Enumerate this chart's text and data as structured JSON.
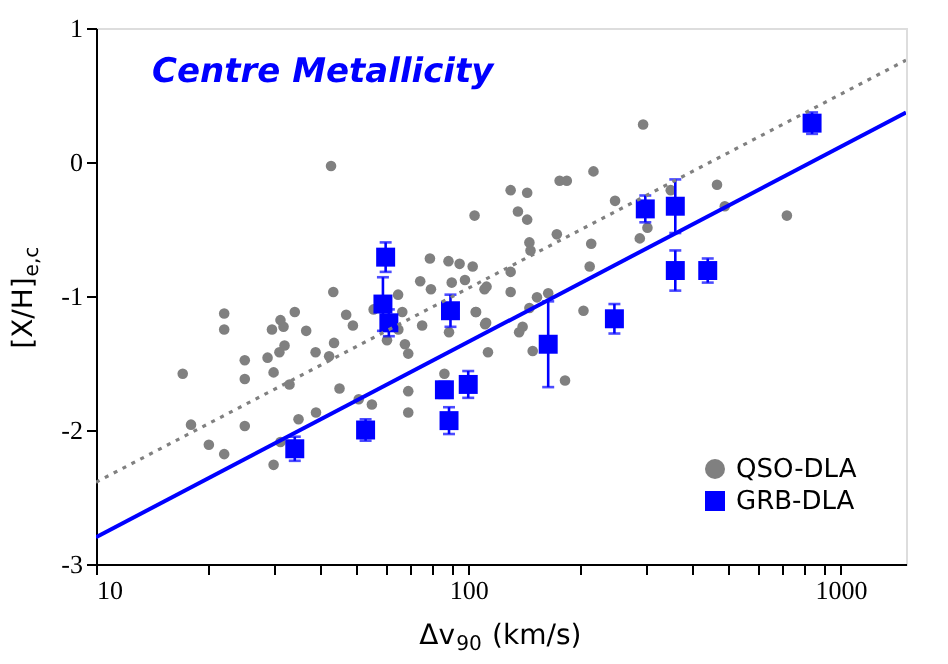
{
  "chart_data": {
    "type": "scatter",
    "title": "Centre Metallicity",
    "xlabel": "Δv$_{90}$ (km/s)",
    "ylabel": "[X/H]$_{e,c}$",
    "log": "x",
    "xlim": [
      10,
      1500
    ],
    "ylim": [
      -3,
      1
    ],
    "xticks": [
      10,
      {
        "value": 20,
        "label": null
      },
      {
        "value": 30,
        "label": null
      },
      {
        "value": 40,
        "label": null
      },
      {
        "value": 50,
        "label": null
      },
      {
        "value": 60,
        "label": null
      },
      {
        "value": 70,
        "label": null
      },
      {
        "value": 80,
        "label": null
      },
      {
        "value": 90,
        "label": null
      },
      100,
      {
        "value": 200,
        "label": null
      },
      {
        "value": 300,
        "label": null
      },
      {
        "value": 400,
        "label": null
      },
      {
        "value": 500,
        "label": null
      },
      {
        "value": 600,
        "label": null
      },
      {
        "value": 700,
        "label": null
      },
      {
        "value": 800,
        "label": null
      },
      {
        "value": 900,
        "label": null
      },
      1000
    ],
    "yticks": [
      -3,
      -2,
      -1,
      0,
      1
    ],
    "grid": false,
    "legend": "bottom right",
    "series": [
      {
        "name": "QSO-DLA",
        "type": "scatter",
        "marker": "circle",
        "color": "#808080",
        "x": [
          42.8,
          104,
          22.1,
          22.1,
          43.4,
          78.9,
          88.5,
          94.8,
          102.8,
          74.3,
          79.4,
          90.3,
          98,
          110.6,
          64.8,
          47,
          49,
          55.7,
          34.2,
          31.3,
          29.7,
          31.9,
          105,
          17.1,
          18,
          20.1,
          22.1,
          25.1,
          25.1,
          25.1,
          28.9,
          30,
          30,
          31.1,
          32.1,
          31.3,
          33.1,
          35,
          36.7,
          38.9,
          39,
          42.3,
          43.6,
          45.1,
          50.8,
          55.1,
          60.5,
          64.9,
          67.6,
          69,
          69,
          69,
          66.5,
          75.2,
          86.3,
          88.8,
          104.7,
          111.7,
          113,
          295,
          217,
          176,
          184,
          130,
          144,
          136,
          144,
          248,
          466,
          489,
          718,
          350,
          303,
          289,
          173,
          146,
          147,
          214,
          212,
          130,
          112,
          130,
          153,
          164,
          146,
          111,
          137,
          140,
          204,
          149,
          182
        ],
        "values": [
          -0.03,
          -0.4,
          -1.13,
          -1.25,
          -0.97,
          -0.72,
          -0.74,
          -0.76,
          -0.78,
          -0.89,
          -0.95,
          -0.9,
          -0.88,
          -0.95,
          -0.99,
          -1.14,
          -1.22,
          -1.1,
          -1.12,
          -1.18,
          -1.25,
          -1.23,
          -1.12,
          -1.58,
          -1.96,
          -2.11,
          -2.18,
          -1.48,
          -1.62,
          -1.97,
          -1.46,
          -1.57,
          -2.26,
          -1.42,
          -1.37,
          -2.09,
          -1.66,
          -1.92,
          -1.26,
          -1.42,
          -1.87,
          -1.45,
          -1.35,
          -1.69,
          -1.77,
          -1.81,
          -1.33,
          -1.25,
          -1.36,
          -1.43,
          -1.71,
          -1.87,
          -1.12,
          -1.22,
          -1.58,
          -1.27,
          -1.12,
          -1.2,
          -1.42,
          0.28,
          -0.07,
          -0.14,
          -0.14,
          -0.21,
          -0.23,
          -0.37,
          -0.43,
          -0.29,
          -0.17,
          -0.33,
          -0.4,
          -0.21,
          -0.49,
          -0.57,
          -0.54,
          -0.6,
          -0.66,
          -0.61,
          -0.78,
          -0.82,
          -0.93,
          -0.97,
          -1.01,
          -0.98,
          -1.09,
          -1.21,
          -1.27,
          -1.23,
          -1.11,
          -1.41,
          -1.63
        ]
      },
      {
        "name": "GRB-DLA",
        "type": "scatter",
        "marker": "square",
        "color": "#0000ff",
        "x": [
          34.2,
          53,
          59,
          60,
          61.2,
          86.3,
          88.8,
          89.6,
          100,
          164,
          247,
          299,
          360,
          360,
          440,
          839
        ],
        "values": [
          -2.14,
          -2.0,
          -1.06,
          -0.71,
          -1.2,
          -1.7,
          -1.93,
          -1.11,
          -1.66,
          -1.36,
          -1.17,
          -0.35,
          -0.33,
          -0.81,
          -0.81,
          0.29
        ],
        "errors": [
          0.09,
          0.08,
          0.2,
          0.11,
          0.1,
          0.06,
          0.1,
          0.12,
          0.1,
          0.32,
          0.11,
          0.1,
          0.2,
          0.15,
          0.09,
          0.08
        ]
      },
      {
        "type": "line",
        "color": "#808080",
        "line_style": "dotted",
        "x": [
          10,
          1500
        ],
        "values": [
          -2.39,
          0.76
        ]
      },
      {
        "type": "line",
        "color": "#0000ff",
        "line_style": "solid",
        "x": [
          10,
          1500
        ],
        "values": [
          -2.8,
          0.37
        ]
      }
    ]
  }
}
